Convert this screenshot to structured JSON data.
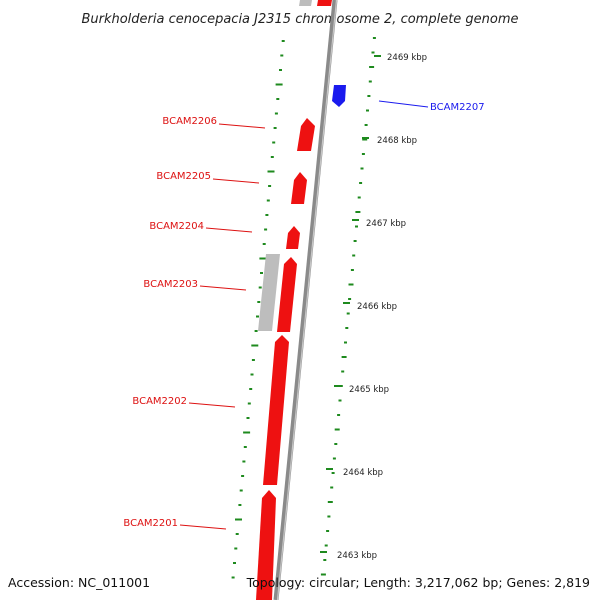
{
  "title": "Burkholderia cenocepacia J2315 chromosome 2, complete genome",
  "accession": "Accession: NC_011001",
  "topology": "Topology: circular; Length: 3,217,062 bp; Genes: 2,819",
  "colors": {
    "forward_gene": "#ee1111",
    "reverse_gene": "#1a1aee",
    "pseudo_gene": "#bdbdbd",
    "backbone": "#8a8a8a",
    "gc_marks": "#1e8a1e",
    "label_line_red": "#dd1111",
    "label_line_blue": "#1a1aee"
  },
  "scale_ticks": [
    "2469 kbp",
    "2468 kbp",
    "2467 kbp",
    "2466 kbp",
    "2465 kbp",
    "2464 kbp",
    "2463 kbp"
  ],
  "genes": [
    {
      "label": "BCAM2207",
      "strand": "reverse",
      "color": "blue"
    },
    {
      "label": "BCAM2206",
      "strand": "forward",
      "color": "red"
    },
    {
      "label": "BCAM2205",
      "strand": "forward",
      "color": "red"
    },
    {
      "label": "BCAM2204",
      "strand": "forward",
      "color": "red"
    },
    {
      "label": "BCAM2203",
      "strand": "forward",
      "color": "red"
    },
    {
      "label": "BCAM2202",
      "strand": "forward",
      "color": "red"
    },
    {
      "label": "BCAM2201",
      "strand": "forward",
      "color": "red"
    }
  ]
}
